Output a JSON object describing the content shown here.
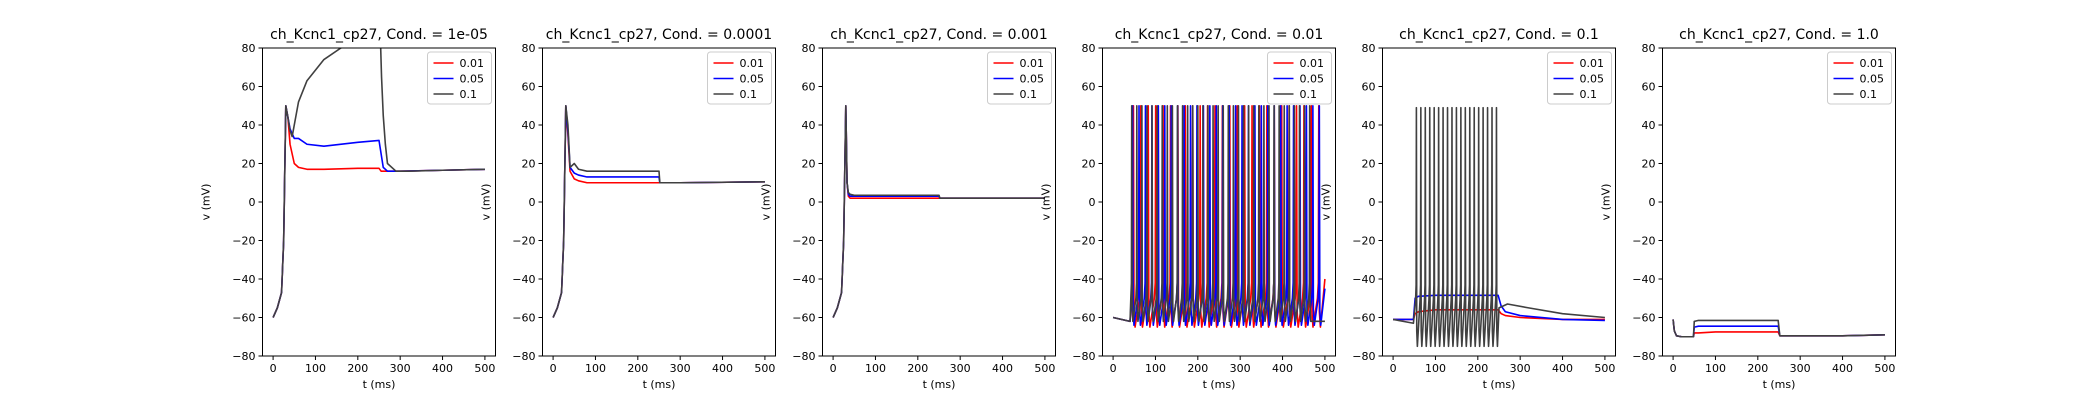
{
  "colors": {
    "0.01": "#ff0000",
    "0.05": "#0000ff",
    "0.1": "#404040"
  },
  "chart_data": [
    {
      "type": "line",
      "title": "ch_Kcnc1_cp27, Cond. = 1e-05",
      "xlabel": "t (ms)",
      "ylabel": "v (mV)",
      "xlim": [
        -25,
        525
      ],
      "ylim": [
        -80,
        80
      ],
      "xticks": [
        0,
        100,
        200,
        300,
        400,
        500
      ],
      "yticks": [
        -80,
        -60,
        -40,
        -20,
        0,
        20,
        40,
        60,
        80
      ],
      "grid": false,
      "legend": "top-right",
      "series": [
        {
          "name": "0.01",
          "pattern": "plateau",
          "x": [
            0,
            10,
            20,
            25,
            30,
            35,
            40,
            50,
            60,
            80,
            120,
            200,
            250,
            255,
            300,
            400,
            500
          ],
          "y": [
            -60,
            -55,
            -47,
            -20,
            50,
            44,
            30,
            20,
            18,
            17,
            17,
            17.5,
            17.5,
            16,
            16,
            16.5,
            17
          ]
        },
        {
          "name": "0.05",
          "pattern": "plateau",
          "x": [
            0,
            10,
            20,
            25,
            30,
            35,
            40,
            50,
            60,
            80,
            120,
            200,
            250,
            260,
            270,
            300,
            400,
            500
          ],
          "y": [
            -60,
            -55,
            -47,
            -20,
            50,
            44,
            38,
            33,
            33,
            30,
            29,
            31,
            32,
            18,
            16,
            16,
            16.5,
            17
          ]
        },
        {
          "name": "0.1",
          "pattern": "plateau",
          "x": [
            0,
            10,
            20,
            25,
            30,
            35,
            40,
            45,
            50,
            60,
            80,
            120,
            160,
            200,
            230,
            250,
            254,
            256,
            260,
            265,
            270,
            290,
            320,
            400,
            500
          ],
          "y": [
            -60,
            -55,
            -47,
            -20,
            50,
            44,
            37,
            34,
            40,
            52,
            63,
            74,
            80,
            85,
            88,
            90,
            80,
            65,
            45,
            30,
            20,
            16,
            16,
            16.5,
            17
          ]
        }
      ]
    },
    {
      "type": "line",
      "title": "ch_Kcnc1_cp27, Cond. = 0.0001",
      "xlabel": "t (ms)",
      "ylabel": "v (mV)",
      "xlim": [
        -25,
        525
      ],
      "ylim": [
        -80,
        80
      ],
      "xticks": [
        0,
        100,
        200,
        300,
        400,
        500
      ],
      "yticks": [
        -80,
        -60,
        -40,
        -20,
        0,
        20,
        40,
        60,
        80
      ],
      "grid": false,
      "legend": "top-right",
      "series": [
        {
          "name": "0.01",
          "pattern": "plateau",
          "x": [
            0,
            10,
            20,
            25,
            30,
            35,
            40,
            50,
            60,
            80,
            250,
            252,
            300,
            500
          ],
          "y": [
            -60,
            -55,
            -47,
            -20,
            50,
            35,
            16,
            12,
            11,
            10,
            10,
            10,
            10,
            10.5
          ]
        },
        {
          "name": "0.05",
          "pattern": "plateau",
          "x": [
            0,
            10,
            20,
            25,
            30,
            35,
            40,
            50,
            60,
            80,
            250,
            252,
            300,
            500
          ],
          "y": [
            -60,
            -55,
            -47,
            -20,
            50,
            37,
            18,
            15,
            14,
            13,
            13,
            10,
            10,
            10.5
          ]
        },
        {
          "name": "0.1",
          "pattern": "plateau",
          "x": [
            0,
            10,
            20,
            25,
            30,
            35,
            40,
            50,
            60,
            80,
            250,
            252,
            300,
            500
          ],
          "y": [
            -60,
            -55,
            -47,
            -20,
            50,
            40,
            18,
            20,
            17,
            16,
            16,
            10,
            10,
            10.5
          ]
        }
      ]
    },
    {
      "type": "line",
      "title": "ch_Kcnc1_cp27, Cond. = 0.001",
      "xlabel": "t (ms)",
      "ylabel": "v (mV)",
      "xlim": [
        -25,
        525
      ],
      "ylim": [
        -80,
        80
      ],
      "xticks": [
        0,
        100,
        200,
        300,
        400,
        500
      ],
      "yticks": [
        -80,
        -60,
        -40,
        -20,
        0,
        20,
        40,
        60,
        80
      ],
      "grid": false,
      "legend": "top-right",
      "series": [
        {
          "name": "0.01",
          "pattern": "plateau",
          "x": [
            0,
            10,
            20,
            25,
            30,
            33,
            36,
            40,
            50,
            250,
            252,
            500
          ],
          "y": [
            -60,
            -55,
            -47,
            -20,
            50,
            10,
            3,
            2,
            2,
            2,
            2,
            2
          ]
        },
        {
          "name": "0.05",
          "pattern": "plateau",
          "x": [
            0,
            10,
            20,
            25,
            30,
            33,
            36,
            40,
            50,
            250,
            252,
            500
          ],
          "y": [
            -60,
            -55,
            -47,
            -20,
            50,
            10,
            4,
            3,
            3,
            3,
            2,
            2
          ]
        },
        {
          "name": "0.1",
          "pattern": "plateau",
          "x": [
            0,
            10,
            20,
            25,
            30,
            33,
            36,
            40,
            50,
            250,
            252,
            500
          ],
          "y": [
            -60,
            -55,
            -47,
            -20,
            50,
            10,
            5,
            4,
            3.5,
            3.5,
            2,
            2
          ]
        }
      ]
    },
    {
      "type": "line",
      "title": "ch_Kcnc1_cp27, Cond. = 0.01",
      "xlabel": "t (ms)",
      "ylabel": "v (mV)",
      "xlim": [
        -25,
        525
      ],
      "ylim": [
        -80,
        80
      ],
      "xticks": [
        0,
        100,
        200,
        300,
        400,
        500
      ],
      "yticks": [
        -80,
        -60,
        -40,
        -20,
        0,
        20,
        40,
        60,
        80
      ],
      "grid": false,
      "legend": "top-right",
      "series": [
        {
          "name": "0.01",
          "pattern": "spikes",
          "baseline": -60,
          "baseline_until": 40,
          "first_spike": 48,
          "interval": 17.5,
          "last_spike": 490,
          "peak": 50,
          "trough": -65,
          "end": -40
        },
        {
          "name": "0.05",
          "pattern": "spikes",
          "baseline": -60,
          "baseline_until": 40,
          "first_spike": 46,
          "interval": 15.2,
          "last_spike": 495,
          "peak": 50,
          "trough": -64,
          "end": -45
        },
        {
          "name": "0.1",
          "pattern": "spikes",
          "baseline": -60,
          "baseline_until": 40,
          "first_spike": 44,
          "interval": 12.0,
          "last_spike": 475,
          "peak": 50,
          "trough": -62,
          "end": -62
        }
      ]
    },
    {
      "type": "line",
      "title": "ch_Kcnc1_cp27, Cond. = 0.1",
      "xlabel": "t (ms)",
      "ylabel": "v (mV)",
      "xlim": [
        -25,
        525
      ],
      "ylim": [
        -80,
        80
      ],
      "xticks": [
        0,
        100,
        200,
        300,
        400,
        500
      ],
      "yticks": [
        -80,
        -60,
        -40,
        -20,
        0,
        20,
        40,
        60,
        80
      ],
      "grid": false,
      "legend": "top-right",
      "series": [
        {
          "name": "0.01",
          "pattern": "plateau",
          "x": [
            0,
            48,
            52,
            60,
            100,
            200,
            248,
            255,
            265,
            300,
            400,
            500
          ],
          "y": [
            -61,
            -61,
            -58,
            -57,
            -56,
            -56,
            -56,
            -58,
            -59,
            -60,
            -61,
            -61
          ]
        },
        {
          "name": "0.05",
          "pattern": "plateau",
          "x": [
            0,
            48,
            52,
            60,
            100,
            200,
            248,
            255,
            265,
            300,
            400,
            500
          ],
          "y": [
            -61,
            -61,
            -50,
            -49,
            -48.5,
            -48.5,
            -48.5,
            -54,
            -57,
            -59,
            -61,
            -61.5
          ]
        },
        {
          "name": "0.1",
          "pattern": "spikes",
          "baseline": -61,
          "baseline_until": 48,
          "first_spike": 55,
          "interval": 10.5,
          "last_spike": 245,
          "peak": 49,
          "trough": -75,
          "end_curve": [
            [
              250,
              -55
            ],
            [
              270,
              -53
            ],
            [
              320,
              -55
            ],
            [
              400,
              -58
            ],
            [
              500,
              -60
            ]
          ]
        }
      ]
    },
    {
      "type": "line",
      "title": "ch_Kcnc1_cp27, Cond. = 1.0",
      "xlabel": "t (ms)",
      "ylabel": "v (mV)",
      "xlim": [
        -25,
        525
      ],
      "ylim": [
        -80,
        80
      ],
      "xticks": [
        0,
        100,
        200,
        300,
        400,
        500
      ],
      "yticks": [
        -80,
        -60,
        -40,
        -20,
        0,
        20,
        40,
        60,
        80
      ],
      "grid": false,
      "legend": "top-right",
      "series": [
        {
          "name": "0.01",
          "pattern": "plateau",
          "x": [
            0,
            3,
            8,
            20,
            48,
            50,
            60,
            100,
            200,
            248,
            252,
            300,
            400,
            500
          ],
          "y": [
            -61,
            -67,
            -69.5,
            -70,
            -70,
            -68,
            -68,
            -67.5,
            -67.5,
            -67.5,
            -69.5,
            -69.5,
            -69.5,
            -69
          ]
        },
        {
          "name": "0.05",
          "pattern": "plateau",
          "x": [
            0,
            3,
            8,
            20,
            48,
            50,
            60,
            100,
            200,
            248,
            252,
            300,
            400,
            500
          ],
          "y": [
            -61,
            -67,
            -69.5,
            -70,
            -70,
            -65,
            -64.5,
            -64.5,
            -64.5,
            -64.5,
            -69.5,
            -69.5,
            -69.5,
            -69
          ]
        },
        {
          "name": "0.1",
          "pattern": "plateau",
          "x": [
            0,
            3,
            8,
            20,
            48,
            50,
            60,
            100,
            200,
            248,
            252,
            300,
            400,
            500
          ],
          "y": [
            -61,
            -67,
            -69.5,
            -70,
            -70,
            -62,
            -61.5,
            -61.5,
            -61.5,
            -61.5,
            -69.5,
            -69.5,
            -69.5,
            -69
          ]
        }
      ]
    }
  ]
}
